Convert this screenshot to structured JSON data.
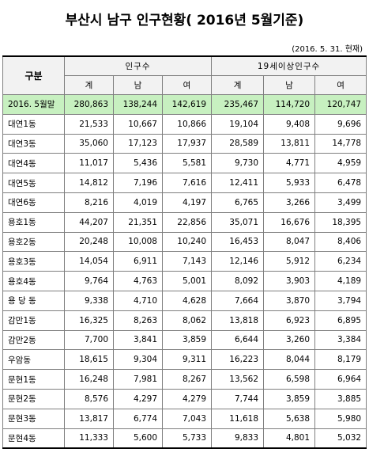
{
  "title": "부산시 남구 인구현황( 2016년 5월기준)",
  "as_of": "(2016. 5. 31. 현재)",
  "header": {
    "row_label": "구분",
    "group_pop": "인구수",
    "group_adult": "19세이상인구수",
    "col_total": "계",
    "col_male": "남",
    "col_female": "여"
  },
  "rows": [
    {
      "name": "2016. 5월말",
      "total": "280,863",
      "male": "138,244",
      "female": "142,619",
      "a_total": "235,467",
      "a_male": "114,720",
      "a_female": "120,747"
    },
    {
      "name": "대연1동",
      "total": "21,533",
      "male": "10,667",
      "female": "10,866",
      "a_total": "19,104",
      "a_male": "9,408",
      "a_female": "9,696"
    },
    {
      "name": "대연3동",
      "total": "35,060",
      "male": "17,123",
      "female": "17,937",
      "a_total": "28,589",
      "a_male": "13,811",
      "a_female": "14,778"
    },
    {
      "name": "대연4동",
      "total": "11,017",
      "male": "5,436",
      "female": "5,581",
      "a_total": "9,730",
      "a_male": "4,771",
      "a_female": "4,959"
    },
    {
      "name": "대연5동",
      "total": "14,812",
      "male": "7,196",
      "female": "7,616",
      "a_total": "12,411",
      "a_male": "5,933",
      "a_female": "6,478"
    },
    {
      "name": "대연6동",
      "total": "8,216",
      "male": "4,019",
      "female": "4,197",
      "a_total": "6,765",
      "a_male": "3,266",
      "a_female": "3,499"
    },
    {
      "name": "용호1동",
      "total": "44,207",
      "male": "21,351",
      "female": "22,856",
      "a_total": "35,071",
      "a_male": "16,676",
      "a_female": "18,395"
    },
    {
      "name": "용호2동",
      "total": "20,248",
      "male": "10,008",
      "female": "10,240",
      "a_total": "16,453",
      "a_male": "8,047",
      "a_female": "8,406"
    },
    {
      "name": "용호3동",
      "total": "14,054",
      "male": "6,911",
      "female": "7,143",
      "a_total": "12,146",
      "a_male": "5,912",
      "a_female": "6,234"
    },
    {
      "name": "용호4동",
      "total": "9,764",
      "male": "4,763",
      "female": "5,001",
      "a_total": "8,092",
      "a_male": "3,903",
      "a_female": "4,189"
    },
    {
      "name": "용 당 동",
      "total": "9,338",
      "male": "4,710",
      "female": "4,628",
      "a_total": "7,664",
      "a_male": "3,870",
      "a_female": "3,794"
    },
    {
      "name": "감만1동",
      "total": "16,325",
      "male": "8,263",
      "female": "8,062",
      "a_total": "13,818",
      "a_male": "6,923",
      "a_female": "6,895"
    },
    {
      "name": "감만2동",
      "total": "7,700",
      "male": "3,841",
      "female": "3,859",
      "a_total": "6,644",
      "a_male": "3,260",
      "a_female": "3,384"
    },
    {
      "name": "우암동",
      "total": "18,615",
      "male": "9,304",
      "female": "9,311",
      "a_total": "16,223",
      "a_male": "8,044",
      "a_female": "8,179"
    },
    {
      "name": "문현1동",
      "total": "16,248",
      "male": "7,981",
      "female": "8,267",
      "a_total": "13,562",
      "a_male": "6,598",
      "a_female": "6,964"
    },
    {
      "name": "문현2동",
      "total": "8,576",
      "male": "4,297",
      "female": "4,279",
      "a_total": "7,744",
      "a_male": "3,859",
      "a_female": "3,885"
    },
    {
      "name": "문현3동",
      "total": "13,817",
      "male": "6,774",
      "female": "7,043",
      "a_total": "11,618",
      "a_male": "5,638",
      "a_female": "5,980"
    },
    {
      "name": "문현4동",
      "total": "11,333",
      "male": "5,600",
      "female": "5,733",
      "a_total": "9,833",
      "a_male": "4,801",
      "a_female": "5,032"
    }
  ]
}
